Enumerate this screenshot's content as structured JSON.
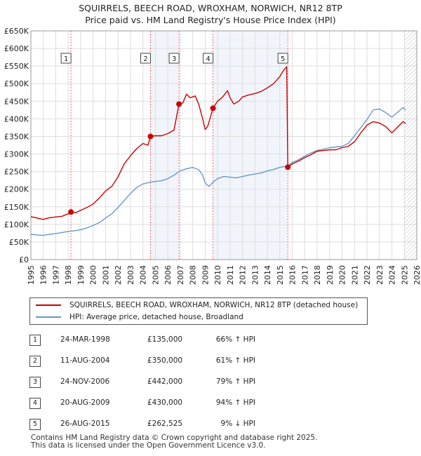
{
  "title_line1": "SQUIRRELS, BEECH ROAD, WROXHAM, NORWICH, NR12 8TP",
  "title_line2": "Price paid vs. HM Land Registry's House Price Index (HPI)",
  "colors": {
    "price_paid": "#cc0000",
    "hpi": "#6699cc",
    "marker_line": "#ff6666",
    "hatch": "#888888",
    "grid": "#dddddd",
    "shade": "#e8eef8"
  },
  "legend": {
    "price_paid_label": "SQUIRRELS, BEECH ROAD, WROXHAM, NORWICH, NR12 8TP (detached house)",
    "hpi_label": "HPI: Average price, detached house, Broadland"
  },
  "sales": [
    {
      "num": "1",
      "date": "24-MAR-1998",
      "price": "£135,000",
      "hpi": "66% ↑ HPI"
    },
    {
      "num": "2",
      "date": "11-AUG-2004",
      "price": "£350,000",
      "hpi": "61% ↑ HPI"
    },
    {
      "num": "3",
      "date": "24-NOV-2006",
      "price": "£442,000",
      "hpi": "79% ↑ HPI"
    },
    {
      "num": "4",
      "date": "20-AUG-2009",
      "price": "£430,000",
      "hpi": "94% ↑ HPI"
    },
    {
      "num": "5",
      "date": "26-AUG-2015",
      "price": "£262,525",
      "hpi": "9% ↓ HPI"
    }
  ],
  "footer": {
    "line1": "Contains HM Land Registry data © Crown copyright and database right 2025.",
    "line2": "This data is licensed under the Open Government Licence v3.0."
  },
  "chart_data": {
    "type": "line",
    "xlim": [
      1995,
      2026
    ],
    "ylim": [
      0,
      650000
    ],
    "x_ticks": [
      1995,
      1996,
      1997,
      1998,
      1999,
      2000,
      2001,
      2002,
      2003,
      2004,
      2005,
      2006,
      2007,
      2008,
      2009,
      2010,
      2011,
      2012,
      2013,
      2014,
      2015,
      2016,
      2017,
      2018,
      2019,
      2020,
      2021,
      2022,
      2023,
      2024,
      2025,
      2026
    ],
    "y_ticks": [
      {
        "value": 0,
        "label": "£0"
      },
      {
        "value": 50000,
        "label": "£50K"
      },
      {
        "value": 100000,
        "label": "£100K"
      },
      {
        "value": 150000,
        "label": "£150K"
      },
      {
        "value": 200000,
        "label": "£200K"
      },
      {
        "value": 250000,
        "label": "£250K"
      },
      {
        "value": 300000,
        "label": "£300K"
      },
      {
        "value": 350000,
        "label": "£350K"
      },
      {
        "value": 400000,
        "label": "£400K"
      },
      {
        "value": 450000,
        "label": "£450K"
      },
      {
        "value": 500000,
        "label": "£500K"
      },
      {
        "value": 550000,
        "label": "£550K"
      },
      {
        "value": 600000,
        "label": "£600K"
      },
      {
        "value": 650000,
        "label": "£650K"
      }
    ],
    "grid": true,
    "future_hatch_start": 2025.0,
    "series": [
      {
        "name": "SQUIRRELS, BEECH ROAD, WROXHAM, NORWICH, NR12 8TP (detached house)",
        "points": [
          [
            1995.0,
            122000
          ],
          [
            1995.5,
            118000
          ],
          [
            1996.0,
            114000
          ],
          [
            1996.5,
            119000
          ],
          [
            1997.0,
            121000
          ],
          [
            1997.5,
            123000
          ],
          [
            1998.0,
            130000
          ],
          [
            1998.22,
            135000
          ],
          [
            1998.6,
            133000
          ],
          [
            1999.0,
            140000
          ],
          [
            1999.5,
            148000
          ],
          [
            2000.0,
            158000
          ],
          [
            2000.5,
            175000
          ],
          [
            2001.0,
            195000
          ],
          [
            2001.5,
            208000
          ],
          [
            2002.0,
            235000
          ],
          [
            2002.5,
            272000
          ],
          [
            2003.0,
            295000
          ],
          [
            2003.5,
            315000
          ],
          [
            2004.0,
            330000
          ],
          [
            2004.4,
            325000
          ],
          [
            2004.61,
            350000
          ],
          [
            2005.0,
            352000
          ],
          [
            2005.5,
            352000
          ],
          [
            2006.0,
            358000
          ],
          [
            2006.5,
            368000
          ],
          [
            2006.9,
            442000
          ],
          [
            2007.2,
            445000
          ],
          [
            2007.5,
            470000
          ],
          [
            2007.8,
            460000
          ],
          [
            2008.2,
            465000
          ],
          [
            2008.5,
            440000
          ],
          [
            2008.8,
            400000
          ],
          [
            2009.0,
            370000
          ],
          [
            2009.2,
            378000
          ],
          [
            2009.63,
            430000
          ],
          [
            2010.0,
            450000
          ],
          [
            2010.4,
            462000
          ],
          [
            2010.8,
            480000
          ],
          [
            2011.0,
            460000
          ],
          [
            2011.3,
            442000
          ],
          [
            2011.7,
            450000
          ],
          [
            2012.0,
            462000
          ],
          [
            2012.5,
            468000
          ],
          [
            2013.0,
            472000
          ],
          [
            2013.5,
            478000
          ],
          [
            2014.0,
            488000
          ],
          [
            2014.5,
            500000
          ],
          [
            2015.0,
            520000
          ],
          [
            2015.3,
            538000
          ],
          [
            2015.55,
            548000
          ],
          [
            2015.64,
            262525
          ],
          [
            2016.0,
            272000
          ],
          [
            2016.5,
            280000
          ],
          [
            2017.0,
            290000
          ],
          [
            2017.5,
            298000
          ],
          [
            2018.0,
            308000
          ],
          [
            2018.5,
            310000
          ],
          [
            2019.0,
            312000
          ],
          [
            2019.5,
            312000
          ],
          [
            2020.0,
            318000
          ],
          [
            2020.5,
            322000
          ],
          [
            2021.0,
            335000
          ],
          [
            2021.5,
            360000
          ],
          [
            2022.0,
            382000
          ],
          [
            2022.5,
            392000
          ],
          [
            2023.0,
            388000
          ],
          [
            2023.5,
            378000
          ],
          [
            2024.0,
            360000
          ],
          [
            2024.5,
            378000
          ],
          [
            2024.9,
            392000
          ],
          [
            2025.1,
            386000
          ]
        ]
      },
      {
        "name": "HPI: Average price, detached house, Broadland",
        "points": [
          [
            1995.0,
            72000
          ],
          [
            1995.5,
            70000
          ],
          [
            1996.0,
            69000
          ],
          [
            1996.5,
            72000
          ],
          [
            1997.0,
            74000
          ],
          [
            1997.5,
            77000
          ],
          [
            1998.0,
            80000
          ],
          [
            1998.5,
            82000
          ],
          [
            1999.0,
            85000
          ],
          [
            1999.5,
            90000
          ],
          [
            2000.0,
            97000
          ],
          [
            2000.5,
            105000
          ],
          [
            2001.0,
            118000
          ],
          [
            2001.5,
            130000
          ],
          [
            2002.0,
            148000
          ],
          [
            2002.5,
            168000
          ],
          [
            2003.0,
            188000
          ],
          [
            2003.5,
            205000
          ],
          [
            2004.0,
            215000
          ],
          [
            2004.6,
            220000
          ],
          [
            2005.0,
            222000
          ],
          [
            2005.5,
            224000
          ],
          [
            2006.0,
            230000
          ],
          [
            2006.5,
            240000
          ],
          [
            2007.0,
            252000
          ],
          [
            2007.5,
            258000
          ],
          [
            2008.0,
            262000
          ],
          [
            2008.5,
            255000
          ],
          [
            2008.8,
            240000
          ],
          [
            2009.0,
            218000
          ],
          [
            2009.3,
            208000
          ],
          [
            2009.7,
            222000
          ],
          [
            2010.0,
            230000
          ],
          [
            2010.5,
            236000
          ],
          [
            2011.0,
            234000
          ],
          [
            2011.5,
            232000
          ],
          [
            2012.0,
            236000
          ],
          [
            2012.5,
            240000
          ],
          [
            2013.0,
            243000
          ],
          [
            2013.5,
            246000
          ],
          [
            2014.0,
            252000
          ],
          [
            2014.5,
            256000
          ],
          [
            2015.0,
            262000
          ],
          [
            2015.64,
            266000
          ],
          [
            2016.0,
            276000
          ],
          [
            2016.5,
            284000
          ],
          [
            2017.0,
            294000
          ],
          [
            2017.5,
            303000
          ],
          [
            2018.0,
            310000
          ],
          [
            2018.5,
            314000
          ],
          [
            2019.0,
            318000
          ],
          [
            2019.5,
            320000
          ],
          [
            2020.0,
            322000
          ],
          [
            2020.5,
            330000
          ],
          [
            2021.0,
            352000
          ],
          [
            2021.5,
            375000
          ],
          [
            2022.0,
            398000
          ],
          [
            2022.5,
            425000
          ],
          [
            2023.0,
            428000
          ],
          [
            2023.5,
            418000
          ],
          [
            2024.0,
            405000
          ],
          [
            2024.5,
            420000
          ],
          [
            2024.9,
            432000
          ],
          [
            2025.1,
            425000
          ]
        ]
      }
    ],
    "sale_points": [
      {
        "num": "1",
        "x": 1998.22,
        "y": 135000
      },
      {
        "num": "2",
        "x": 2004.61,
        "y": 350000
      },
      {
        "num": "3",
        "x": 2006.9,
        "y": 442000
      },
      {
        "num": "4",
        "x": 2009.63,
        "y": 430000
      },
      {
        "num": "5",
        "x": 2015.64,
        "y": 262525
      }
    ]
  }
}
